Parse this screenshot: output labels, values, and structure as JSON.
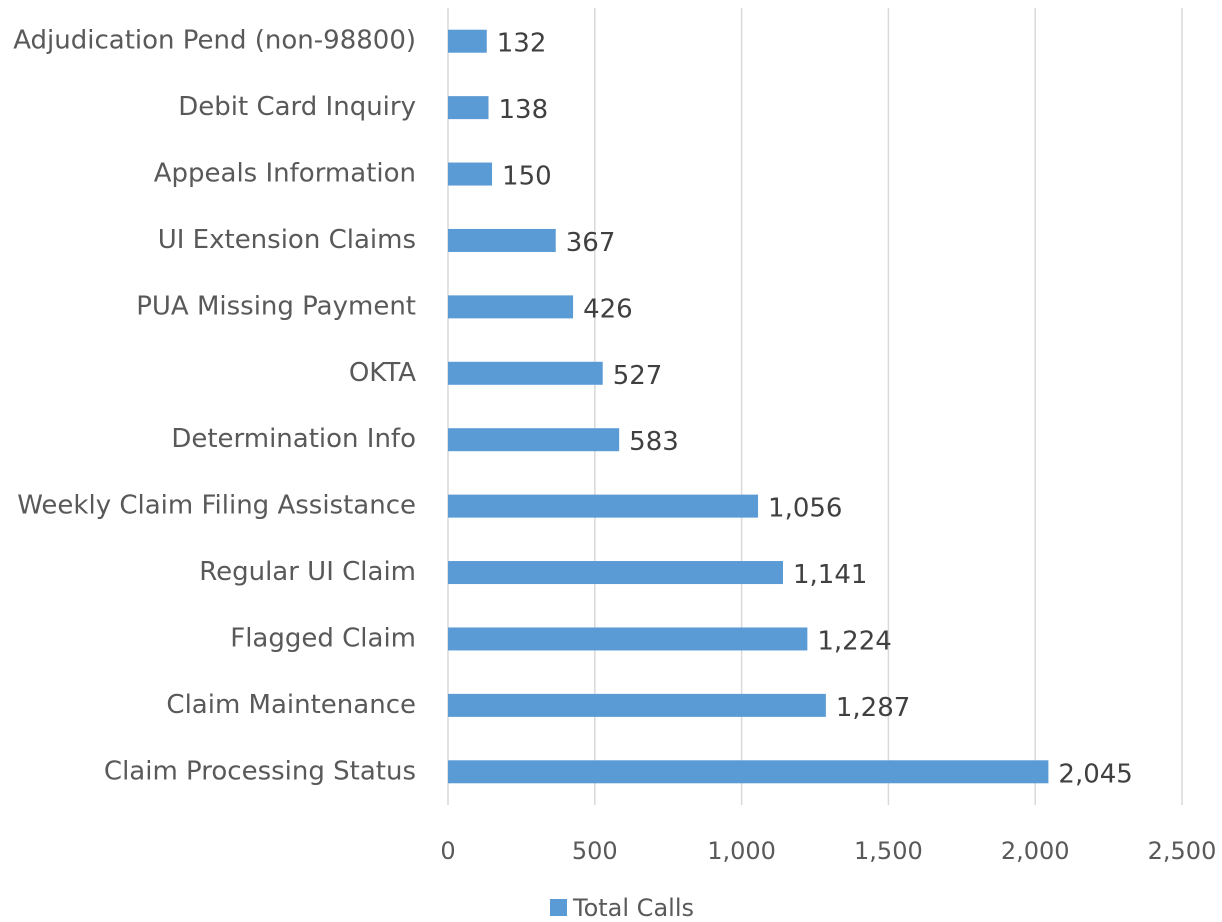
{
  "chart_data": {
    "type": "bar",
    "orientation": "horizontal",
    "categories": [
      "Adjudication Pend (non-98800)",
      "Debit Card Inquiry",
      "Appeals Information",
      "UI Extension Claims",
      "PUA Missing Payment",
      "OKTA",
      "Determination Info",
      "Weekly Claim Filing Assistance",
      "Regular UI Claim",
      "Flagged Claim",
      "Claim Maintenance",
      "Claim Processing Status"
    ],
    "series": [
      {
        "name": "Total Calls",
        "color": "#5b9bd5",
        "values": [
          132,
          138,
          150,
          367,
          426,
          527,
          583,
          1056,
          1141,
          1224,
          1287,
          2045
        ],
        "value_labels": [
          "132",
          "138",
          "150",
          "367",
          "426",
          "527",
          "583",
          "1,056",
          "1,141",
          "1,224",
          "1,287",
          "2,045"
        ]
      }
    ],
    "xlim": [
      0,
      2500
    ],
    "xticks": [
      0,
      500,
      {
        "value": 1000,
        "label": "1,000"
      },
      {
        "value": 1500,
        "label": "1,500"
      },
      {
        "value": 2000,
        "label": "2,000"
      },
      {
        "value": 2500,
        "label": "2,500"
      }
    ],
    "grid": true,
    "legend": "bottom"
  }
}
